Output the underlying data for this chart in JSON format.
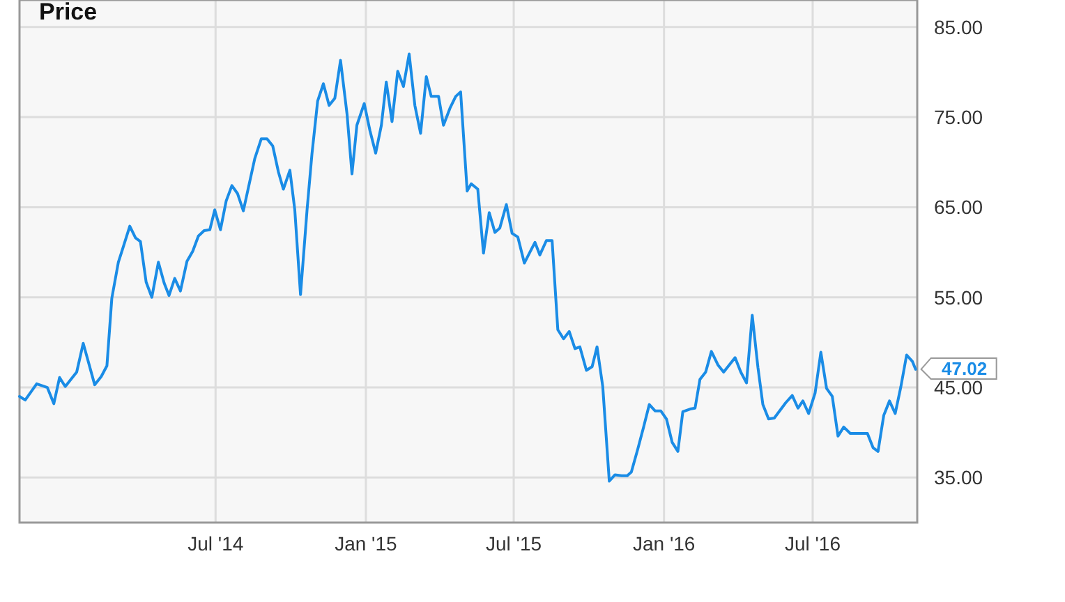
{
  "chart_data": {
    "type": "line",
    "title": "Price",
    "x": [
      "2013-11-03",
      "2013-11-10",
      "2013-11-24",
      "2013-12-07",
      "2013-12-15",
      "2013-12-22",
      "2013-12-29",
      "2014-01-12",
      "2014-01-20",
      "2014-02-03",
      "2014-02-11",
      "2014-02-18",
      "2014-02-24",
      "2014-03-04",
      "2014-03-09",
      "2014-03-18",
      "2014-03-25",
      "2014-03-31",
      "2014-04-07",
      "2014-04-14",
      "2014-04-22",
      "2014-04-29",
      "2014-05-05",
      "2014-05-12",
      "2014-05-19",
      "2014-05-27",
      "2014-06-03",
      "2014-06-10",
      "2014-06-17",
      "2014-06-24",
      "2014-06-30",
      "2014-07-07",
      "2014-07-14",
      "2014-07-21",
      "2014-07-28",
      "2014-08-04",
      "2014-08-18",
      "2014-08-26",
      "2014-09-02",
      "2014-09-09",
      "2014-09-16",
      "2014-09-22",
      "2014-09-30",
      "2014-10-06",
      "2014-10-13",
      "2014-10-21",
      "2014-10-27",
      "2014-11-03",
      "2014-11-10",
      "2014-11-17",
      "2014-11-24",
      "2014-12-01",
      "2014-12-09",
      "2014-12-15",
      "2014-12-21",
      "2014-12-30",
      "2015-01-06",
      "2015-01-13",
      "2015-01-20",
      "2015-01-26",
      "2015-02-02",
      "2015-02-09",
      "2015-02-16",
      "2015-02-23",
      "2015-03-02",
      "2015-03-09",
      "2015-03-16",
      "2015-03-22",
      "2015-03-31",
      "2015-04-06",
      "2015-04-14",
      "2015-04-21",
      "2015-04-27",
      "2015-05-05",
      "2015-05-10",
      "2015-05-18",
      "2015-05-25",
      "2015-06-01",
      "2015-06-08",
      "2015-06-14",
      "2015-06-22",
      "2015-06-29",
      "2015-07-06",
      "2015-07-14",
      "2015-07-27",
      "2015-08-02",
      "2015-08-10",
      "2015-08-17",
      "2015-08-24",
      "2015-08-31",
      "2015-09-07",
      "2015-09-14",
      "2015-09-20",
      "2015-09-28",
      "2015-10-05",
      "2015-10-11",
      "2015-10-18",
      "2015-10-26",
      "2015-11-02",
      "2015-11-10",
      "2015-11-17",
      "2015-11-22",
      "2015-11-30",
      "2015-12-07",
      "2015-12-14",
      "2015-12-21",
      "2015-12-28",
      "2016-01-04",
      "2016-01-11",
      "2016-01-18",
      "2016-01-24",
      "2016-02-02",
      "2016-02-08",
      "2016-02-14",
      "2016-02-21",
      "2016-02-28",
      "2016-03-07",
      "2016-03-14",
      "2016-03-28",
      "2016-04-04",
      "2016-04-11",
      "2016-04-18",
      "2016-04-25",
      "2016-05-01",
      "2016-05-08",
      "2016-05-15",
      "2016-05-29",
      "2016-06-06",
      "2016-06-13",
      "2016-06-19",
      "2016-06-26",
      "2016-07-04",
      "2016-07-11",
      "2016-07-18",
      "2016-07-25",
      "2016-08-01",
      "2016-08-08",
      "2016-08-16",
      "2016-08-31",
      "2016-09-06",
      "2016-09-13",
      "2016-09-19",
      "2016-09-26",
      "2016-10-03",
      "2016-10-10",
      "2016-10-17",
      "2016-10-24",
      "2016-10-31",
      "2016-11-04"
    ],
    "series": [
      {
        "color": "#1a8ce6",
        "values": [
          44.0,
          43.6,
          45.4,
          45.0,
          43.2,
          46.1,
          45.1,
          46.7,
          49.9,
          45.3,
          46.2,
          47.4,
          54.9,
          58.9,
          60.3,
          62.9,
          61.6,
          61.2,
          56.7,
          55.0,
          58.9,
          56.6,
          55.2,
          57.1,
          55.7,
          59.0,
          60.1,
          61.8,
          62.4,
          62.5,
          64.7,
          62.5,
          65.7,
          67.4,
          66.5,
          64.6,
          70.4,
          72.6,
          72.6,
          71.8,
          68.9,
          67.0,
          69.1,
          64.7,
          55.3,
          64.7,
          70.9,
          76.8,
          78.7,
          76.3,
          77.1,
          81.3,
          75.3,
          68.7,
          74.1,
          76.5,
          73.5,
          71.0,
          74.1,
          78.9,
          74.5,
          80.1,
          78.4,
          82.0,
          76.3,
          73.2,
          79.5,
          77.3,
          77.3,
          74.1,
          76.0,
          77.3,
          77.8,
          66.8,
          67.6,
          67.0,
          59.9,
          64.4,
          62.2,
          62.7,
          65.3,
          62.1,
          61.7,
          58.8,
          61.1,
          59.7,
          61.3,
          61.3,
          51.4,
          50.4,
          51.2,
          49.3,
          49.5,
          46.9,
          47.3,
          49.5,
          45.1,
          34.6,
          35.3,
          35.2,
          35.2,
          35.6,
          38.2,
          40.6,
          43.1,
          42.4,
          42.4,
          41.5,
          38.9,
          37.9,
          42.3,
          42.6,
          42.7,
          45.9,
          46.7,
          49.0,
          47.5,
          46.7,
          48.3,
          46.7,
          45.5,
          53.0,
          47.2,
          43.1,
          41.5,
          41.6,
          43.3,
          44.1,
          42.7,
          43.5,
          42.1,
          44.4,
          48.9,
          44.9,
          44.0,
          39.6,
          40.6,
          39.9,
          39.9,
          39.9,
          38.3,
          37.9,
          41.9,
          43.5,
          42.1,
          45.1,
          48.6,
          47.9,
          47.02
        ]
      }
    ],
    "xlim": [
      "2013-11-03",
      "2016-11-06"
    ],
    "xticks": [
      {
        "value": "2014-07-01",
        "label": "Jul '14"
      },
      {
        "value": "2015-01-01",
        "label": "Jan '15"
      },
      {
        "value": "2015-07-01",
        "label": "Jul '15"
      },
      {
        "value": "2016-01-01",
        "label": "Jan '16"
      },
      {
        "value": "2016-07-01",
        "label": "Jul '16"
      }
    ],
    "ylim": [
      30,
      88
    ],
    "yticks": [
      {
        "value": 35,
        "label": "35.00"
      },
      {
        "value": 45,
        "label": "45.00"
      },
      {
        "value": 55,
        "label": "55.00"
      },
      {
        "value": 65,
        "label": "65.00"
      },
      {
        "value": 75,
        "label": "75.00"
      },
      {
        "value": 85,
        "label": "85.00"
      }
    ],
    "grid": true,
    "annotations": [
      {
        "text": "47.02",
        "x": "2016-11-04",
        "y": 47.02
      }
    ]
  }
}
